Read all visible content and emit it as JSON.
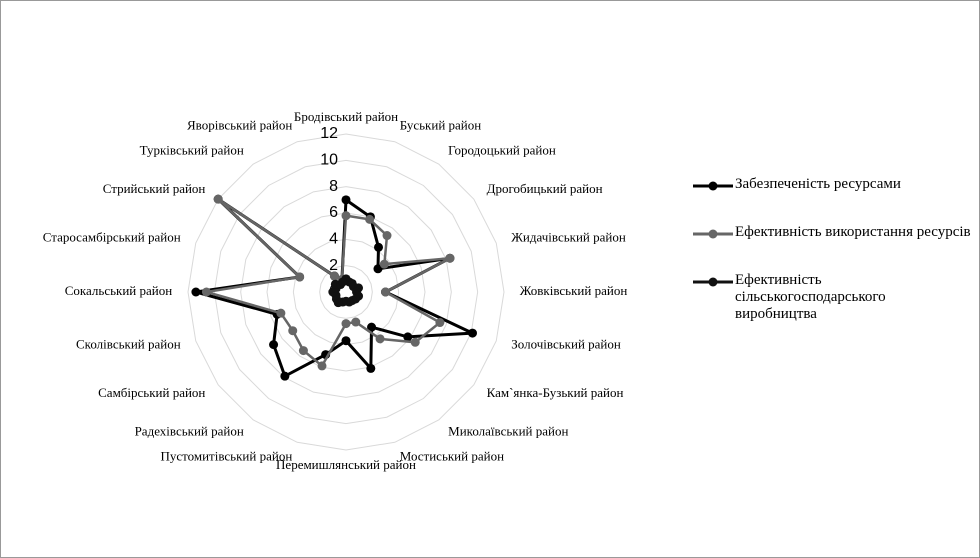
{
  "chart_data": {
    "type": "radar",
    "categories": [
      "Бродівський район",
      "Буський район",
      "Городоцький район",
      "Дрогобицький район",
      "Жидачівський район",
      "Жовківський район",
      "Золочівський район",
      "Кам`янка-Бузький район",
      "Миколаївський район",
      "Мостиський район",
      "Перемишлянський район",
      "Пустомитівський район",
      "Радехівський район",
      "Самбірський район",
      "Сколівський район",
      "Сокальський район",
      "Старосамбірський район",
      "Стрийський район",
      "Турківський район",
      "Яворівський район"
    ],
    "series": [
      {
        "name": "Забезпеченість ресурсами",
        "color": "#000000",
        "values": [
          7,
          6,
          4.2,
          3,
          8.3,
          3,
          10.1,
          5.8,
          3.3,
          6.1,
          3.7,
          5,
          7.9,
          6.8,
          5.5,
          11.4,
          3.7,
          12,
          1.5,
          1
        ]
      },
      {
        "name": "Ефективність використання ресурсів",
        "color": "#666666",
        "values": [
          5.8,
          5.8,
          5.3,
          3.6,
          8.3,
          3,
          7.5,
          6.5,
          4.4,
          2.4,
          2.4,
          5.9,
          5.5,
          5,
          5.2,
          10.6,
          3.7,
          12,
          1.5,
          1
        ]
      },
      {
        "name": "Ефективність сільськогосподарського виробництва",
        "color": "#111111",
        "values": [
          1,
          0.8,
          0.8,
          0.7,
          1,
          0.8,
          1,
          0.9,
          0.8,
          0.8,
          0.7,
          0.8,
          1,
          0.9,
          0.8,
          1,
          0.8,
          1,
          0.7,
          0.8
        ]
      }
    ],
    "ylim": [
      0,
      12
    ],
    "yticks": [
      0,
      2,
      4,
      6,
      8,
      10,
      12
    ],
    "grid": true,
    "legend": "right"
  }
}
